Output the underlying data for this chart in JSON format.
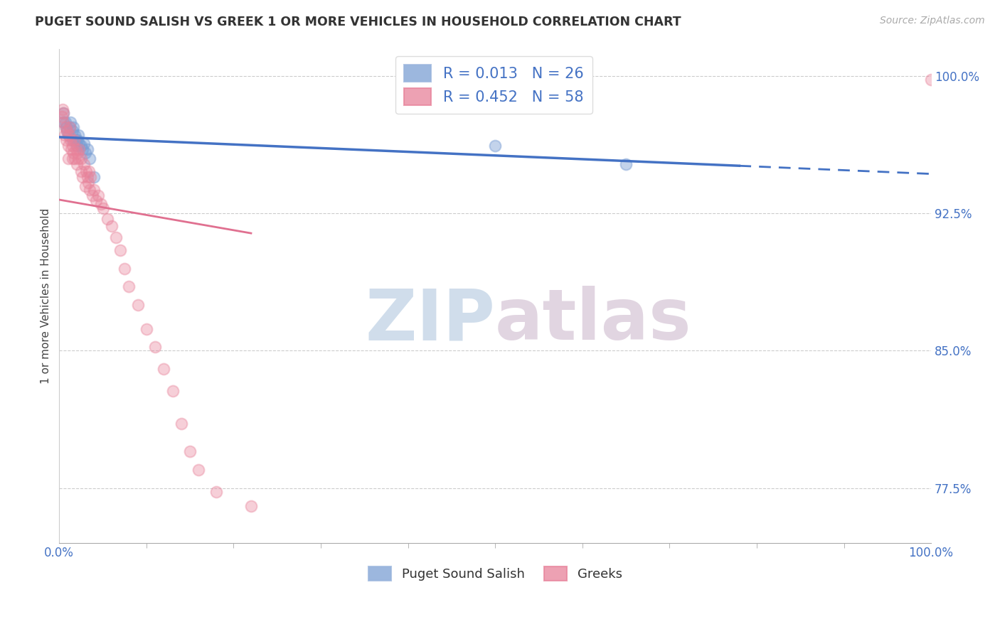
{
  "title": "PUGET SOUND SALISH VS GREEK 1 OR MORE VEHICLES IN HOUSEHOLD CORRELATION CHART",
  "source": "Source: ZipAtlas.com",
  "ylabel": "1 or more Vehicles in Household",
  "xlim": [
    0.0,
    1.0
  ],
  "ylim": [
    0.745,
    1.015
  ],
  "yticks": [
    0.775,
    0.85,
    0.925,
    1.0
  ],
  "ytick_labels": [
    "77.5%",
    "85.0%",
    "92.5%",
    "100.0%"
  ],
  "xtick_labels": [
    "0.0%",
    "100.0%"
  ],
  "xticks": [
    0.0,
    1.0
  ],
  "legend_labels": [
    "Puget Sound Salish",
    "Greeks"
  ],
  "r_blue": 0.013,
  "n_blue": 26,
  "r_pink": 0.452,
  "n_pink": 58,
  "blue_scatter_x": [
    0.005,
    0.005,
    0.007,
    0.008,
    0.009,
    0.01,
    0.012,
    0.013,
    0.015,
    0.015,
    0.016,
    0.018,
    0.019,
    0.02,
    0.021,
    0.022,
    0.023,
    0.025,
    0.027,
    0.028,
    0.03,
    0.032,
    0.035,
    0.04,
    0.5,
    0.65
  ],
  "blue_scatter_y": [
    0.975,
    0.98,
    0.975,
    0.972,
    0.97,
    0.968,
    0.972,
    0.975,
    0.965,
    0.97,
    0.972,
    0.968,
    0.965,
    0.962,
    0.965,
    0.968,
    0.963,
    0.962,
    0.96,
    0.963,
    0.958,
    0.96,
    0.955,
    0.945,
    0.962,
    0.952
  ],
  "pink_scatter_x": [
    0.003,
    0.004,
    0.005,
    0.005,
    0.006,
    0.007,
    0.008,
    0.009,
    0.01,
    0.01,
    0.011,
    0.012,
    0.013,
    0.014,
    0.015,
    0.015,
    0.016,
    0.017,
    0.018,
    0.019,
    0.02,
    0.021,
    0.022,
    0.023,
    0.025,
    0.025,
    0.027,
    0.028,
    0.03,
    0.031,
    0.032,
    0.033,
    0.034,
    0.035,
    0.036,
    0.038,
    0.04,
    0.042,
    0.045,
    0.048,
    0.05,
    0.055,
    0.06,
    0.065,
    0.07,
    0.075,
    0.08,
    0.09,
    0.1,
    0.11,
    0.12,
    0.13,
    0.14,
    0.15,
    0.16,
    0.18,
    0.22,
    1.0
  ],
  "pink_scatter_y": [
    0.978,
    0.982,
    0.975,
    0.98,
    0.968,
    0.972,
    0.965,
    0.97,
    0.955,
    0.962,
    0.968,
    0.972,
    0.965,
    0.96,
    0.955,
    0.962,
    0.958,
    0.965,
    0.955,
    0.96,
    0.952,
    0.958,
    0.955,
    0.96,
    0.948,
    0.955,
    0.945,
    0.952,
    0.94,
    0.948,
    0.945,
    0.942,
    0.948,
    0.938,
    0.945,
    0.935,
    0.938,
    0.932,
    0.935,
    0.93,
    0.928,
    0.922,
    0.918,
    0.912,
    0.905,
    0.895,
    0.885,
    0.875,
    0.862,
    0.852,
    0.84,
    0.828,
    0.81,
    0.795,
    0.785,
    0.773,
    0.765,
    0.998
  ],
  "background_color": "#ffffff",
  "blue_color": "#7b9fd4",
  "pink_color": "#e8829a",
  "blue_line_color": "#4472c4",
  "pink_line_color": "#e07090",
  "grid_color": "#cccccc",
  "watermark_color": "#e0e8f0"
}
